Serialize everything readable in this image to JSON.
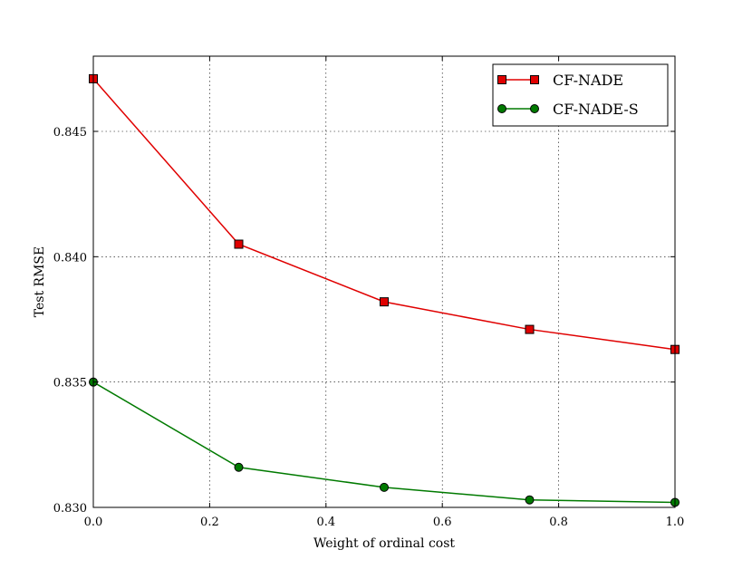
{
  "chart_data": {
    "type": "line",
    "title": "",
    "xlabel": "Weight of ordinal cost",
    "ylabel": "Test RMSE",
    "xlim": [
      0.0,
      1.0
    ],
    "ylim": [
      0.83,
      0.848
    ],
    "x": [
      0.0,
      0.25,
      0.5,
      0.75,
      1.0
    ],
    "xticks": [
      "0.0",
      "0.2",
      "0.4",
      "0.6",
      "0.8",
      "1.0"
    ],
    "xtick_values": [
      0.0,
      0.2,
      0.4,
      0.6,
      0.8,
      1.0
    ],
    "yticks": [
      "0.830",
      "0.835",
      "0.840",
      "0.845"
    ],
    "ytick_values": [
      0.83,
      0.835,
      0.84,
      0.845
    ],
    "grid": true,
    "legend": "top-right",
    "series": [
      {
        "name": "CF-NADE",
        "values": [
          0.8471,
          0.8405,
          0.8382,
          0.8371,
          0.8363
        ],
        "color": "#e00000",
        "marker": "square"
      },
      {
        "name": "CF-NADE-S",
        "values": [
          0.835,
          0.8316,
          0.8308,
          0.8303,
          0.8302
        ],
        "color": "#007a00",
        "marker": "circle"
      }
    ]
  }
}
